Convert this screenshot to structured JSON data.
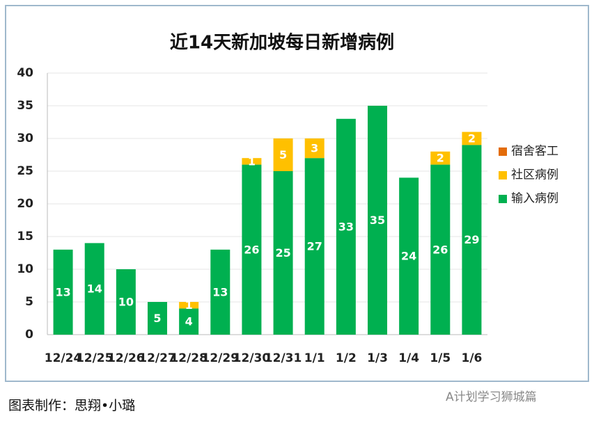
{
  "chart_data": {
    "type": "stacked_bar",
    "title": "近14天新加坡每日新增病例",
    "categories": [
      "12/24",
      "12/25",
      "12/26",
      "12/27",
      "12/28",
      "12/29",
      "12/30",
      "12/31",
      "1/1",
      "1/2",
      "1/3",
      "1/4",
      "1/5",
      "1/6"
    ],
    "series": [
      {
        "name": "输入病例",
        "color": "#00b050",
        "values": [
          13,
          14,
          10,
          5,
          4,
          13,
          26,
          25,
          27,
          33,
          35,
          24,
          26,
          29
        ]
      },
      {
        "name": "社区病例",
        "color": "#ffc000",
        "values": [
          0,
          0,
          0,
          0,
          1,
          0,
          1,
          5,
          3,
          0,
          0,
          0,
          2,
          2
        ]
      },
      {
        "name": "宿舍客工",
        "color": "#e36c09",
        "values": [
          0,
          0,
          0,
          0,
          0,
          0,
          0,
          0,
          0,
          0,
          0,
          0,
          0,
          0
        ]
      }
    ],
    "ylim": [
      0,
      40
    ],
    "yticks": [
      0,
      5,
      10,
      15,
      20,
      25,
      30,
      35,
      40
    ],
    "grid": true,
    "legend": "right"
  },
  "footer": "图表制作：思翔•小璐",
  "watermark": "A计划学习狮城篇"
}
